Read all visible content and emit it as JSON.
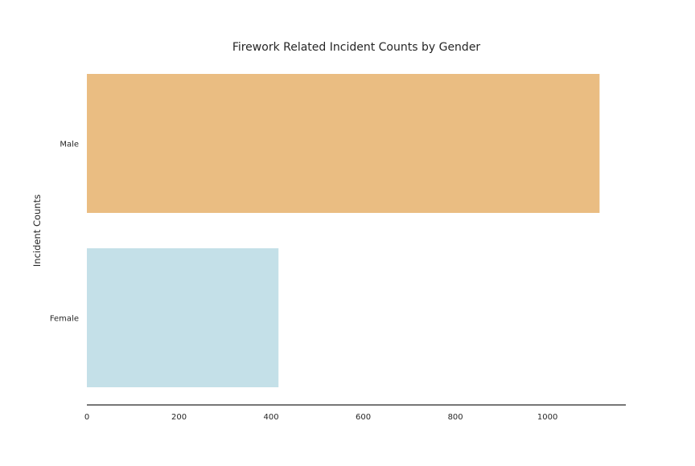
{
  "chart_data": {
    "type": "bar",
    "orientation": "horizontal",
    "title": "Firework Related Incident Counts by Gender",
    "xlabel": "",
    "ylabel": "Incident Counts",
    "categories": [
      "Male",
      "Female"
    ],
    "values": [
      1113,
      416
    ],
    "colors": [
      "#eabd82",
      "#c4e0e8"
    ],
    "xlim": [
      0,
      1170
    ],
    "xticks": [
      0,
      200,
      400,
      600,
      800,
      1000
    ],
    "grid": false,
    "legend": "none"
  }
}
